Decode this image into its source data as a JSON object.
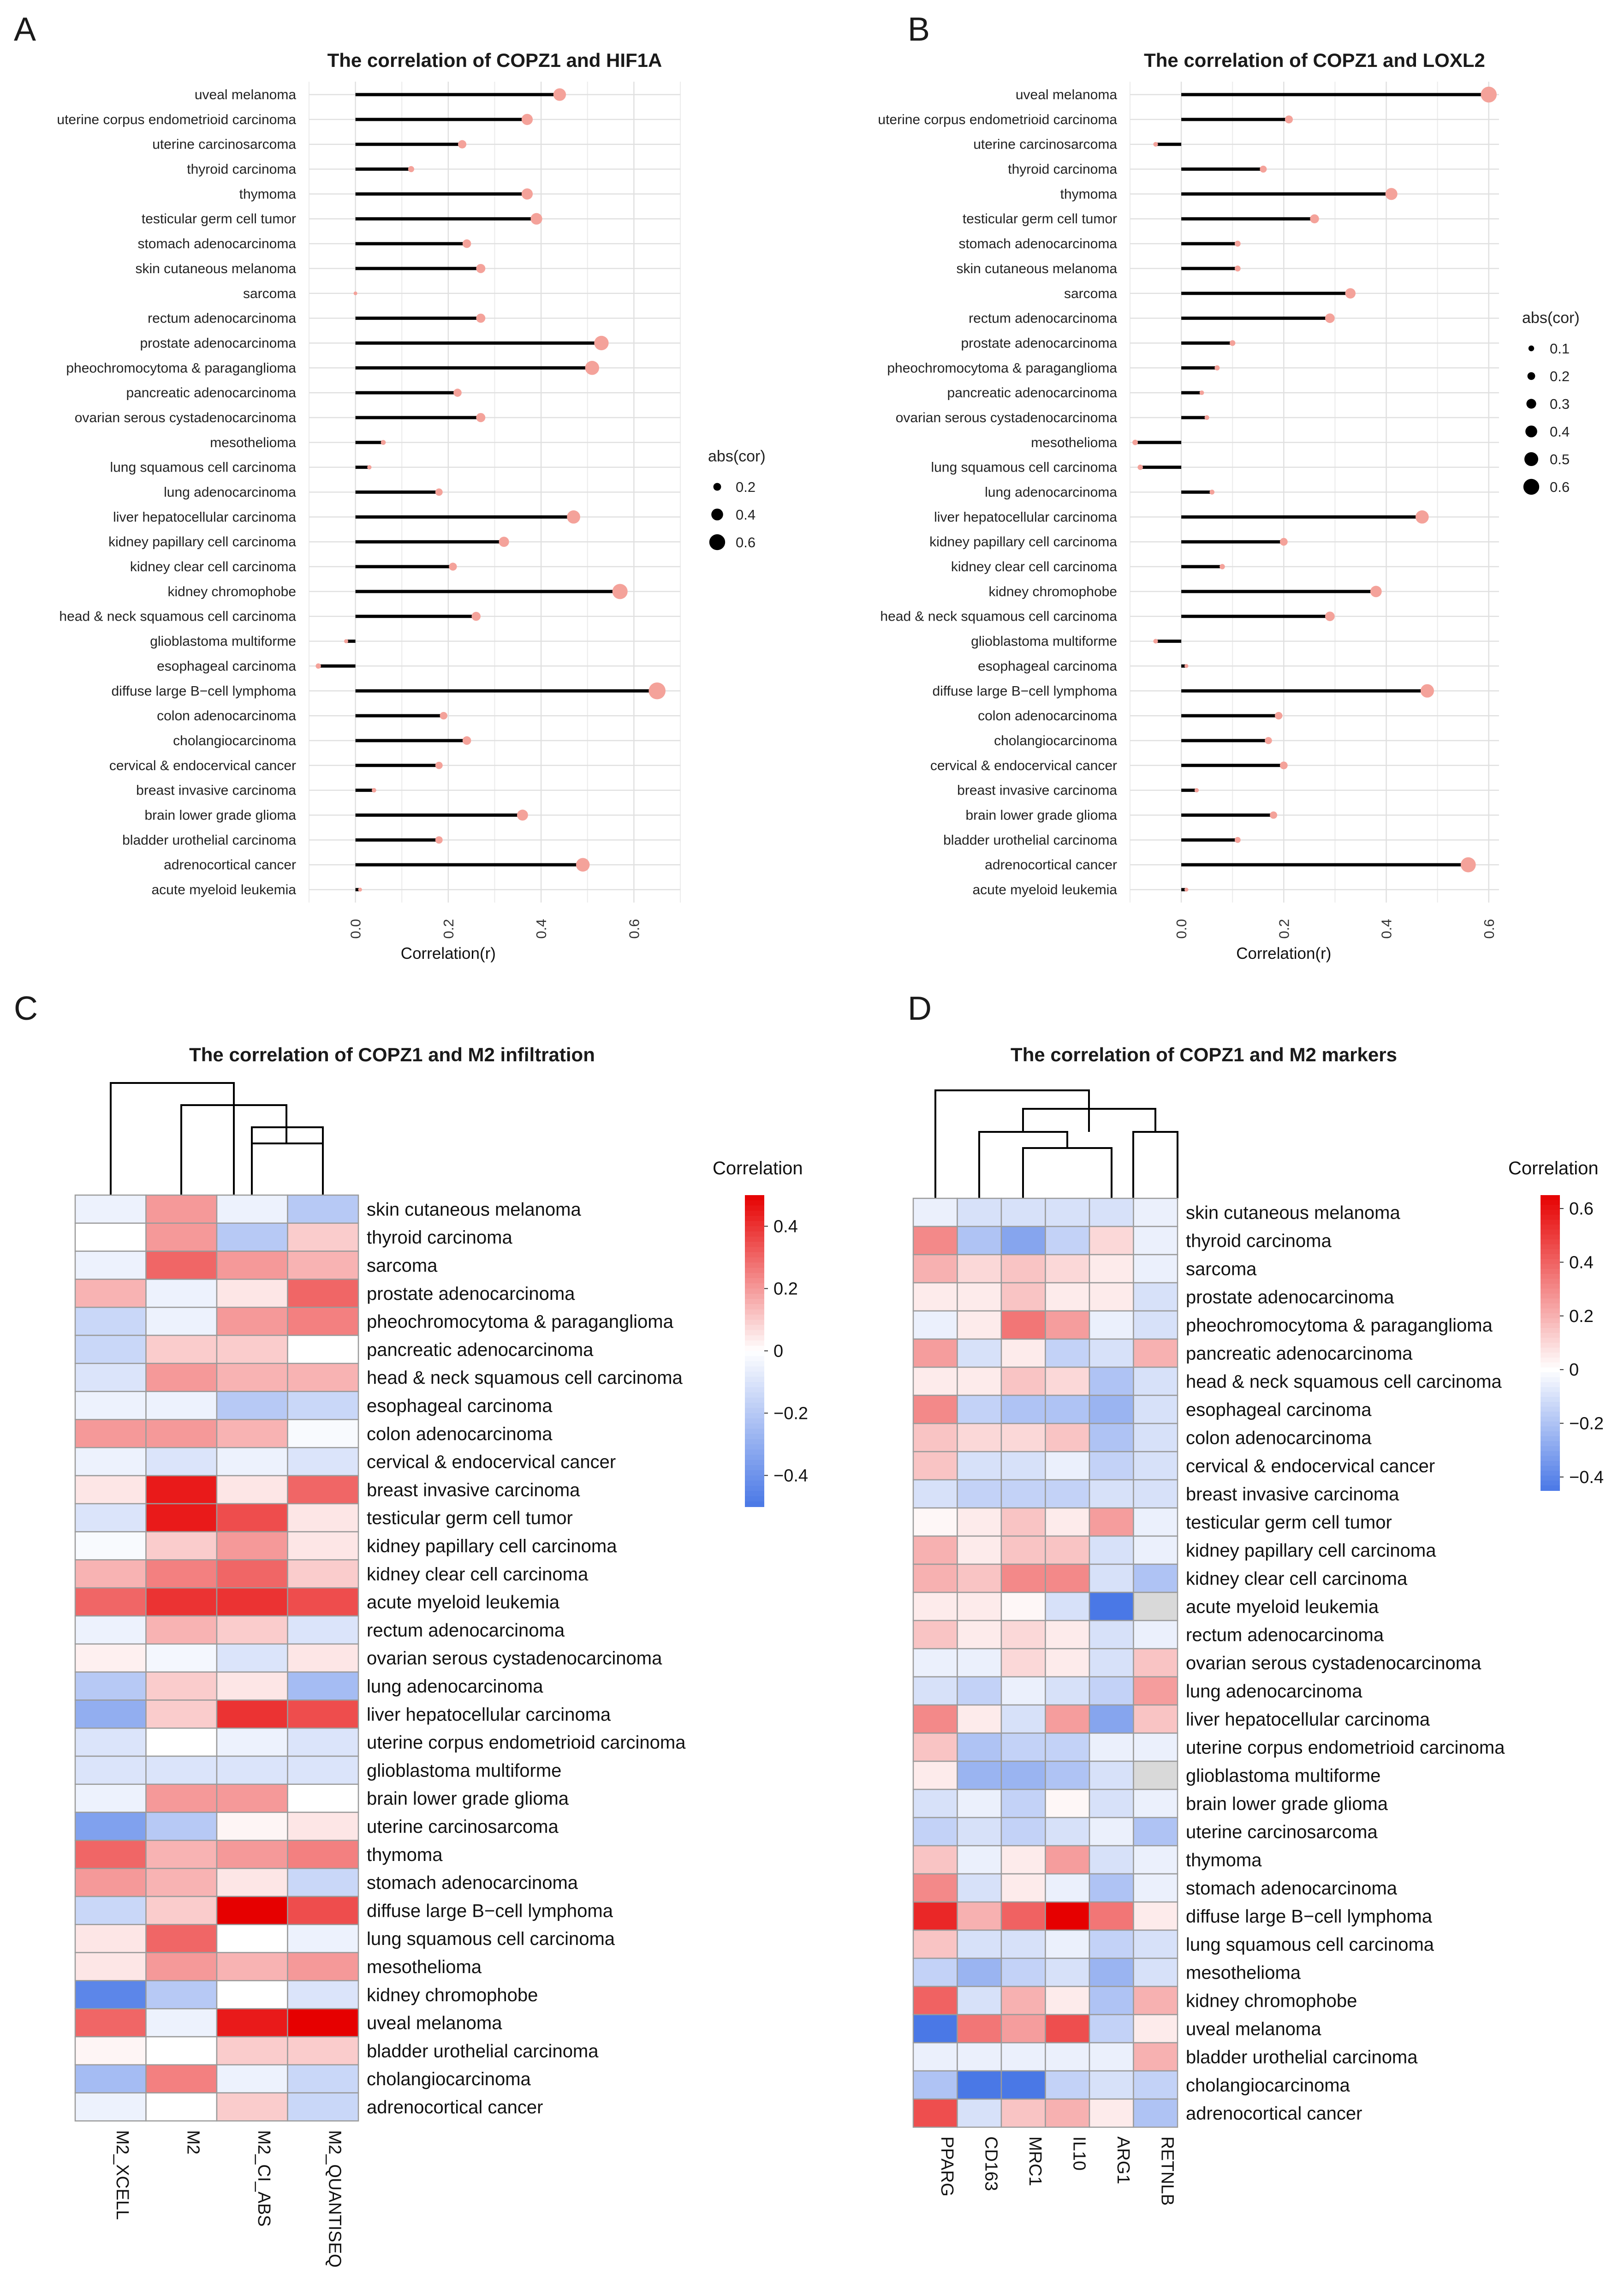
{
  "panels": {
    "A": "A",
    "B": "B",
    "C": "C",
    "D": "D"
  },
  "colors": {
    "lollipop_stick": "#000000",
    "lollipop_dot": "#f4a29a",
    "heat_low": "#4a78e6",
    "heat_mid": "#ffffff",
    "heat_high": "#e60000",
    "missing": "#d9d9d9",
    "cell_border": "#9a9a9a"
  },
  "chart_data": [
    {
      "id": "A",
      "type": "lollipop",
      "title": "The correlation of COPZ1 and HIF1A",
      "xlabel": "Correlation(r)",
      "xlim": [
        -0.1,
        0.7
      ],
      "xticks": [
        "0.0",
        "0.2",
        "0.4",
        "0.6"
      ],
      "size_legend": {
        "title": "abs(cor)",
        "values": [
          "0.2",
          "0.4",
          "0.6"
        ]
      },
      "categories": [
        "uveal melanoma",
        "uterine corpus endometrioid carcinoma",
        "uterine carcinosarcoma",
        "thyroid carcinoma",
        "thymoma",
        "testicular germ cell tumor",
        "stomach adenocarcinoma",
        "skin cutaneous melanoma",
        "sarcoma",
        "rectum adenocarcinoma",
        "prostate adenocarcinoma",
        "pheochromocytoma & paraganglioma",
        "pancreatic adenocarcinoma",
        "ovarian serous cystadenocarcinoma",
        "mesothelioma",
        "lung squamous cell carcinoma",
        "lung adenocarcinoma",
        "liver hepatocellular carcinoma",
        "kidney papillary cell carcinoma",
        "kidney clear cell carcinoma",
        "kidney chromophobe",
        "head & neck squamous cell carcinoma",
        "glioblastoma multiforme",
        "esophageal carcinoma",
        "diffuse large B−cell lymphoma",
        "colon adenocarcinoma",
        "cholangiocarcinoma",
        "cervical & endocervical cancer",
        "breast invasive carcinoma",
        "brain lower grade glioma",
        "bladder urothelial carcinoma",
        "adrenocortical cancer",
        "acute myeloid leukemia"
      ],
      "values": [
        0.44,
        0.37,
        0.23,
        0.12,
        0.37,
        0.39,
        0.24,
        0.27,
        0.0,
        0.27,
        0.53,
        0.51,
        0.22,
        0.27,
        0.06,
        0.03,
        0.18,
        0.47,
        0.32,
        0.21,
        0.57,
        0.26,
        -0.02,
        -0.08,
        0.65,
        0.19,
        0.24,
        0.18,
        0.04,
        0.36,
        0.18,
        0.49,
        0.01
      ]
    },
    {
      "id": "B",
      "type": "lollipop",
      "title": "The correlation of COPZ1 and LOXL2",
      "xlabel": "Correlation(r)",
      "xlim": [
        -0.1,
        0.62
      ],
      "xticks": [
        "0.0",
        "0.2",
        "0.4",
        "0.6"
      ],
      "size_legend": {
        "title": "abs(cor)",
        "values": [
          "0.1",
          "0.2",
          "0.3",
          "0.4",
          "0.5",
          "0.6"
        ]
      },
      "categories": [
        "uveal melanoma",
        "uterine corpus endometrioid carcinoma",
        "uterine carcinosarcoma",
        "thyroid carcinoma",
        "thymoma",
        "testicular germ cell tumor",
        "stomach adenocarcinoma",
        "skin cutaneous melanoma",
        "sarcoma",
        "rectum adenocarcinoma",
        "prostate adenocarcinoma",
        "pheochromocytoma & paraganglioma",
        "pancreatic adenocarcinoma",
        "ovarian serous cystadenocarcinoma",
        "mesothelioma",
        "lung squamous cell carcinoma",
        "lung adenocarcinoma",
        "liver hepatocellular carcinoma",
        "kidney papillary cell carcinoma",
        "kidney clear cell carcinoma",
        "kidney chromophobe",
        "head & neck squamous cell carcinoma",
        "glioblastoma multiforme",
        "esophageal carcinoma",
        "diffuse large B−cell lymphoma",
        "colon adenocarcinoma",
        "cholangiocarcinoma",
        "cervical & endocervical cancer",
        "breast invasive carcinoma",
        "brain lower grade glioma",
        "bladder urothelial carcinoma",
        "adrenocortical cancer",
        "acute myeloid leukemia"
      ],
      "values": [
        0.6,
        0.21,
        -0.05,
        0.16,
        0.41,
        0.26,
        0.11,
        0.11,
        0.33,
        0.29,
        0.1,
        0.07,
        0.04,
        0.05,
        -0.09,
        -0.08,
        0.06,
        0.47,
        0.2,
        0.08,
        0.38,
        0.29,
        -0.05,
        0.01,
        0.48,
        0.19,
        0.17,
        0.2,
        0.03,
        0.18,
        0.11,
        0.56,
        0.01
      ]
    },
    {
      "id": "C",
      "type": "heatmap",
      "title": "The correlation of COPZ1 and M2 infiltration",
      "legend_title": "Correlation",
      "colorbar_range": [
        -0.5,
        0.5
      ],
      "colorbar_ticks": [
        "0.4",
        "0.2",
        "0",
        "−0.2",
        "−0.4"
      ],
      "columns": [
        "M2_XCELL",
        "M2",
        "M2_CI_ABS",
        "M2_QUANTISEQ"
      ],
      "rows": [
        "skin cutaneous melanoma",
        "thyroid carcinoma",
        "sarcoma",
        "prostate adenocarcinoma",
        "pheochromocytoma & paraganglioma",
        "pancreatic adenocarcinoma",
        "head & neck squamous cell carcinoma",
        "esophageal carcinoma",
        "colon adenocarcinoma",
        "cervical & endocervical cancer",
        "breast invasive carcinoma",
        "testicular germ cell tumor",
        "kidney papillary cell carcinoma",
        "kidney clear cell carcinoma",
        "acute myeloid leukemia",
        "rectum adenocarcinoma",
        "ovarian serous cystadenocarcinoma",
        "lung adenocarcinoma",
        "liver hepatocellular carcinoma",
        "uterine corpus endometrioid carcinoma",
        "glioblastoma multiforme",
        "brain lower grade glioma",
        "uterine carcinosarcoma",
        "thymoma",
        "stomach adenocarcinoma",
        "diffuse large B−cell lymphoma",
        "lung squamous cell carcinoma",
        "mesothelioma",
        "kidney chromophobe",
        "uveal melanoma",
        "bladder urothelial carcinoma",
        "cholangiocarcinoma",
        "adrenocortical cancer"
      ],
      "values": [
        [
          -0.05,
          0.2,
          -0.05,
          -0.2
        ],
        [
          0.0,
          0.2,
          -0.2,
          0.1
        ],
        [
          -0.05,
          0.3,
          0.2,
          0.15
        ],
        [
          0.15,
          -0.05,
          0.05,
          0.3
        ],
        [
          -0.15,
          -0.05,
          0.2,
          0.25
        ],
        [
          -0.15,
          0.1,
          0.1,
          0.0
        ],
        [
          -0.1,
          0.2,
          0.15,
          0.15
        ],
        [
          -0.05,
          -0.05,
          -0.2,
          -0.15
        ],
        [
          0.2,
          0.2,
          0.15,
          -0.02
        ],
        [
          -0.05,
          -0.1,
          -0.05,
          -0.1
        ],
        [
          0.05,
          0.45,
          0.05,
          0.3
        ],
        [
          -0.1,
          0.45,
          0.35,
          0.05
        ],
        [
          -0.02,
          0.1,
          0.2,
          0.05
        ],
        [
          0.15,
          0.25,
          0.3,
          0.1
        ],
        [
          0.3,
          0.4,
          0.4,
          0.35
        ],
        [
          -0.05,
          0.15,
          0.1,
          -0.1
        ],
        [
          0.03,
          -0.03,
          -0.1,
          0.05
        ],
        [
          -0.2,
          0.1,
          0.05,
          -0.25
        ],
        [
          -0.3,
          0.1,
          0.4,
          0.35
        ],
        [
          -0.1,
          0.0,
          -0.05,
          -0.1
        ],
        [
          -0.1,
          -0.1,
          -0.1,
          -0.1
        ],
        [
          -0.05,
          0.2,
          0.2,
          0.0
        ],
        [
          -0.35,
          -0.2,
          0.02,
          0.05
        ],
        [
          0.3,
          0.15,
          0.2,
          0.25
        ],
        [
          0.2,
          0.15,
          0.05,
          -0.15
        ],
        [
          -0.15,
          0.1,
          0.5,
          0.35
        ],
        [
          0.05,
          0.3,
          0.0,
          -0.05
        ],
        [
          0.05,
          0.2,
          0.15,
          0.2
        ],
        [
          -0.45,
          -0.2,
          0.0,
          -0.1
        ],
        [
          0.3,
          -0.05,
          0.45,
          0.55
        ],
        [
          0.02,
          0.0,
          0.1,
          0.1
        ],
        [
          -0.25,
          0.25,
          -0.05,
          -0.15
        ],
        [
          -0.05,
          0.0,
          0.1,
          -0.15
        ]
      ]
    },
    {
      "id": "D",
      "type": "heatmap",
      "title": "The correlation of COPZ1 and M2 markers",
      "legend_title": "Correlation",
      "colorbar_range": [
        -0.45,
        0.65
      ],
      "colorbar_ticks": [
        "0.6",
        "0.4",
        "0.2",
        "0",
        "−0.2",
        "−0.4"
      ],
      "columns": [
        "PPARG",
        "CD163",
        "MRC1",
        "IL10",
        "ARG1",
        "RETNLB"
      ],
      "rows": [
        "skin cutaneous melanoma",
        "thyroid carcinoma",
        "sarcoma",
        "prostate adenocarcinoma",
        "pheochromocytoma & paraganglioma",
        "pancreatic adenocarcinoma",
        "head & neck squamous cell carcinoma",
        "esophageal carcinoma",
        "colon adenocarcinoma",
        "cervical & endocervical cancer",
        "breast invasive carcinoma",
        "testicular germ cell tumor",
        "kidney papillary cell carcinoma",
        "kidney clear cell carcinoma",
        "acute myeloid leukemia",
        "rectum adenocarcinoma",
        "ovarian serous cystadenocarcinoma",
        "lung adenocarcinoma",
        "liver hepatocellular carcinoma",
        "uterine corpus endometrioid carcinoma",
        "glioblastoma multiforme",
        "brain lower grade glioma",
        "uterine carcinosarcoma",
        "thymoma",
        "stomach adenocarcinoma",
        "diffuse large B−cell lymphoma",
        "lung squamous cell carcinoma",
        "mesothelioma",
        "kidney chromophobe",
        "uveal melanoma",
        "bladder urothelial carcinoma",
        "cholangiocarcinoma",
        "adrenocortical cancer"
      ],
      "values": [
        [
          -0.05,
          -0.1,
          -0.1,
          -0.1,
          -0.1,
          -0.05
        ],
        [
          0.3,
          -0.2,
          -0.3,
          -0.15,
          0.1,
          -0.05
        ],
        [
          0.2,
          0.1,
          0.15,
          0.1,
          0.05,
          -0.05
        ],
        [
          0.05,
          0.05,
          0.15,
          0.05,
          0.05,
          -0.1
        ],
        [
          -0.05,
          0.05,
          0.35,
          0.25,
          -0.05,
          -0.1
        ],
        [
          0.25,
          -0.1,
          0.05,
          -0.15,
          -0.1,
          0.2
        ],
        [
          0.05,
          0.05,
          0.15,
          0.1,
          -0.2,
          -0.1
        ],
        [
          0.3,
          -0.15,
          -0.2,
          -0.2,
          -0.25,
          -0.1
        ],
        [
          0.15,
          0.1,
          0.1,
          0.15,
          -0.2,
          -0.1
        ],
        [
          0.15,
          -0.1,
          -0.1,
          -0.05,
          -0.15,
          -0.1
        ],
        [
          -0.1,
          -0.15,
          -0.15,
          -0.15,
          -0.1,
          -0.1
        ],
        [
          0.02,
          0.05,
          0.15,
          0.05,
          0.25,
          -0.05
        ],
        [
          0.2,
          0.05,
          0.15,
          0.15,
          -0.1,
          -0.05
        ],
        [
          0.2,
          0.15,
          0.3,
          0.3,
          -0.1,
          -0.2
        ],
        [
          0.05,
          0.05,
          0.02,
          -0.1,
          -0.45,
          null
        ],
        [
          0.15,
          0.05,
          0.1,
          0.05,
          -0.1,
          -0.05
        ],
        [
          -0.05,
          -0.05,
          0.1,
          0.05,
          -0.1,
          0.15
        ],
        [
          -0.1,
          -0.15,
          -0.05,
          -0.1,
          -0.15,
          0.25
        ],
        [
          0.3,
          0.05,
          -0.1,
          0.25,
          -0.3,
          0.15
        ],
        [
          0.15,
          -0.2,
          -0.15,
          -0.15,
          -0.05,
          -0.05
        ],
        [
          0.05,
          -0.25,
          -0.25,
          -0.2,
          -0.1,
          null
        ],
        [
          -0.1,
          -0.05,
          -0.15,
          0.02,
          -0.1,
          -0.05
        ],
        [
          -0.15,
          -0.1,
          -0.15,
          -0.1,
          -0.05,
          -0.2
        ],
        [
          0.15,
          -0.05,
          0.05,
          0.25,
          -0.1,
          -0.05
        ],
        [
          0.3,
          -0.1,
          0.05,
          -0.05,
          -0.2,
          -0.05
        ],
        [
          0.55,
          0.2,
          0.4,
          0.65,
          0.35,
          0.05
        ],
        [
          0.15,
          -0.1,
          -0.1,
          -0.05,
          -0.15,
          -0.1
        ],
        [
          -0.15,
          -0.25,
          -0.15,
          -0.1,
          -0.25,
          -0.1
        ],
        [
          0.4,
          -0.1,
          0.2,
          0.05,
          -0.2,
          0.2
        ],
        [
          -0.45,
          0.35,
          0.25,
          0.45,
          -0.15,
          0.05
        ],
        [
          -0.05,
          -0.05,
          -0.05,
          -0.05,
          -0.05,
          0.2
        ],
        [
          -0.2,
          -0.45,
          -0.45,
          -0.15,
          -0.1,
          -0.15
        ],
        [
          0.45,
          -0.1,
          0.15,
          0.2,
          0.05,
          -0.2
        ]
      ]
    }
  ]
}
